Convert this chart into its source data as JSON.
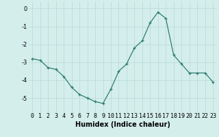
{
  "x": [
    0,
    1,
    2,
    3,
    4,
    5,
    6,
    7,
    8,
    9,
    10,
    11,
    12,
    13,
    14,
    15,
    16,
    17,
    18,
    19,
    20,
    21,
    22,
    23
  ],
  "y": [
    -2.8,
    -2.9,
    -3.3,
    -3.4,
    -3.8,
    -4.4,
    -4.8,
    -5.0,
    -5.2,
    -5.3,
    -4.5,
    -3.5,
    -3.1,
    -2.2,
    -1.8,
    -0.8,
    -0.2,
    -0.55,
    -2.6,
    -3.1,
    -3.6,
    -3.6,
    -3.6,
    -4.1
  ],
  "xlabel": "Humidex (Indice chaleur)",
  "ylim": [
    -5.8,
    0.4
  ],
  "xlim": [
    -0.5,
    23.5
  ],
  "yticks": [
    0,
    -1,
    -2,
    -3,
    -4,
    -5
  ],
  "xticks": [
    0,
    1,
    2,
    3,
    4,
    5,
    6,
    7,
    8,
    9,
    10,
    11,
    12,
    13,
    14,
    15,
    16,
    17,
    18,
    19,
    20,
    21,
    22,
    23
  ],
  "line_color": "#2e7d6e",
  "marker_color": "#2e7d6e",
  "bg_color": "#d4eeec",
  "grid_color": "#b8d8d5",
  "axis_label_fontsize": 7,
  "tick_fontsize": 6,
  "xlabel_fontsize": 7
}
